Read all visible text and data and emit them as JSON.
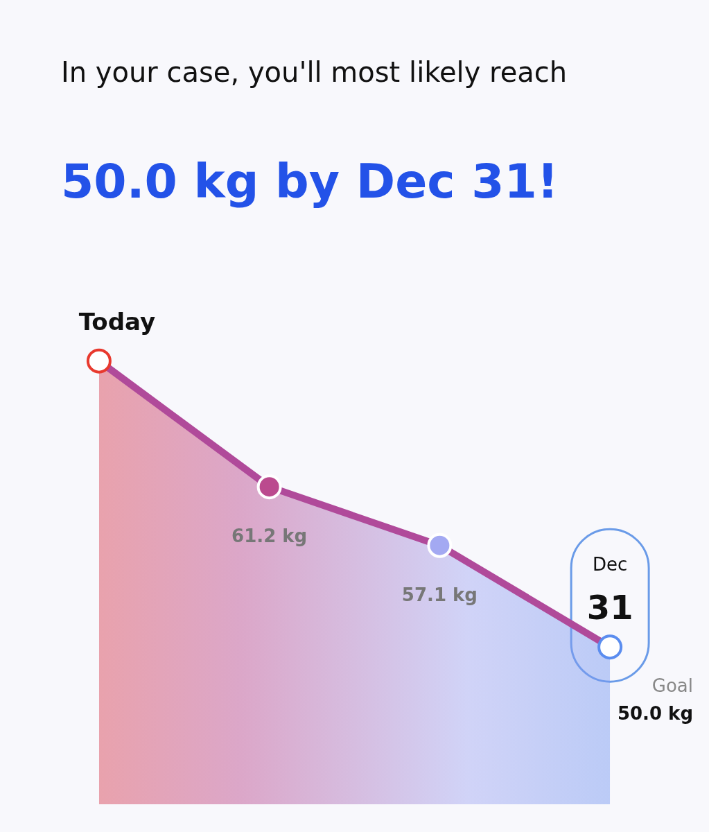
{
  "chart_data": {
    "type": "area",
    "title": "In your case, you'll most likely reach",
    "subtitle": "50.0 kg by Dec 31!",
    "categories": [
      null,
      null,
      null,
      null
    ],
    "series": [
      {
        "color": "#b04a9a",
        "values": [
          70.0,
          61.2,
          57.1,
          50.0
        ],
        "colors": [
          "#e8392e",
          "#bb4a8e",
          "#a3a9f2",
          "#5b8def"
        ],
        "value_labels": [
          null,
          "61.2 kg",
          "57.1 kg",
          null
        ]
      }
    ],
    "marker": "circle",
    "legend": false,
    "grid": false,
    "annotations": [
      "Today",
      "Dec 31",
      "Goal 50.0 kg"
    ]
  }
}
